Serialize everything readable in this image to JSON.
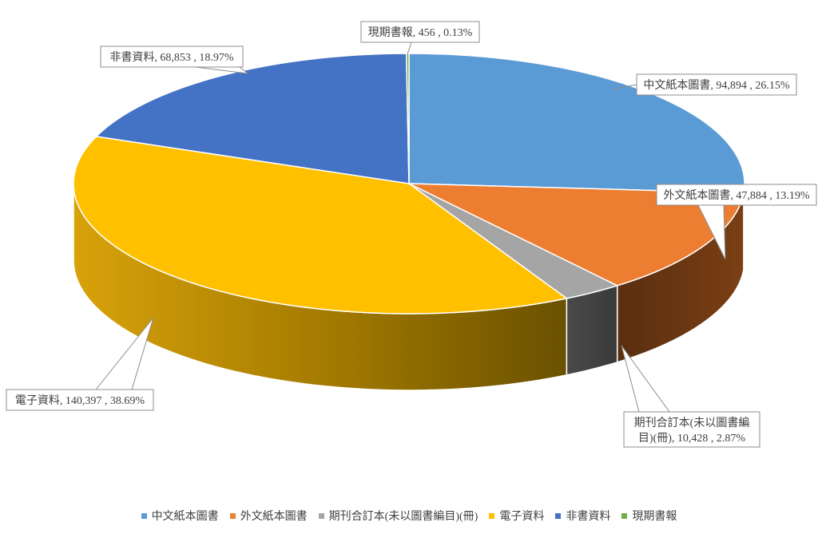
{
  "chart_data": {
    "type": "pie",
    "style": "3d",
    "title": "",
    "slices": [
      {
        "name": "中文紙本圖書",
        "value": 94894,
        "value_label": "94,894",
        "percent_label": "26.15%",
        "color": "#5B9BD5",
        "label": "中文紙本圖書, 94,894 , 26.15%"
      },
      {
        "name": "外文紙本圖書",
        "value": 47884,
        "value_label": "47,884",
        "percent_label": "13.19%",
        "color": "#ED7D31",
        "label": "外文紙本圖書, 47,884 , 13.19%"
      },
      {
        "name": "期刊合訂本(未以圖書編目)(冊)",
        "value": 10428,
        "value_label": "10,428",
        "percent_label": "2.87%",
        "color": "#A5A5A5",
        "label_lines": [
          "期刊合訂本(未以圖書編",
          "目)(冊), 10,428 , 2.87%"
        ]
      },
      {
        "name": "電子資料",
        "value": 140397,
        "value_label": "140,397",
        "percent_label": "38.69%",
        "color": "#FFC000",
        "label": "電子資料, 140,397 , 38.69%"
      },
      {
        "name": "非書資料",
        "value": 68853,
        "value_label": "68,853",
        "percent_label": "18.97%",
        "color": "#4472C4",
        "label": "非書資料, 68,853 , 18.97%"
      },
      {
        "name": "現期書報",
        "value": 456,
        "value_label": "456",
        "percent_label": "0.13%",
        "color": "#70AD47",
        "label": "現期書報, 456 , 0.13%"
      }
    ],
    "legend_position": "bottom"
  }
}
